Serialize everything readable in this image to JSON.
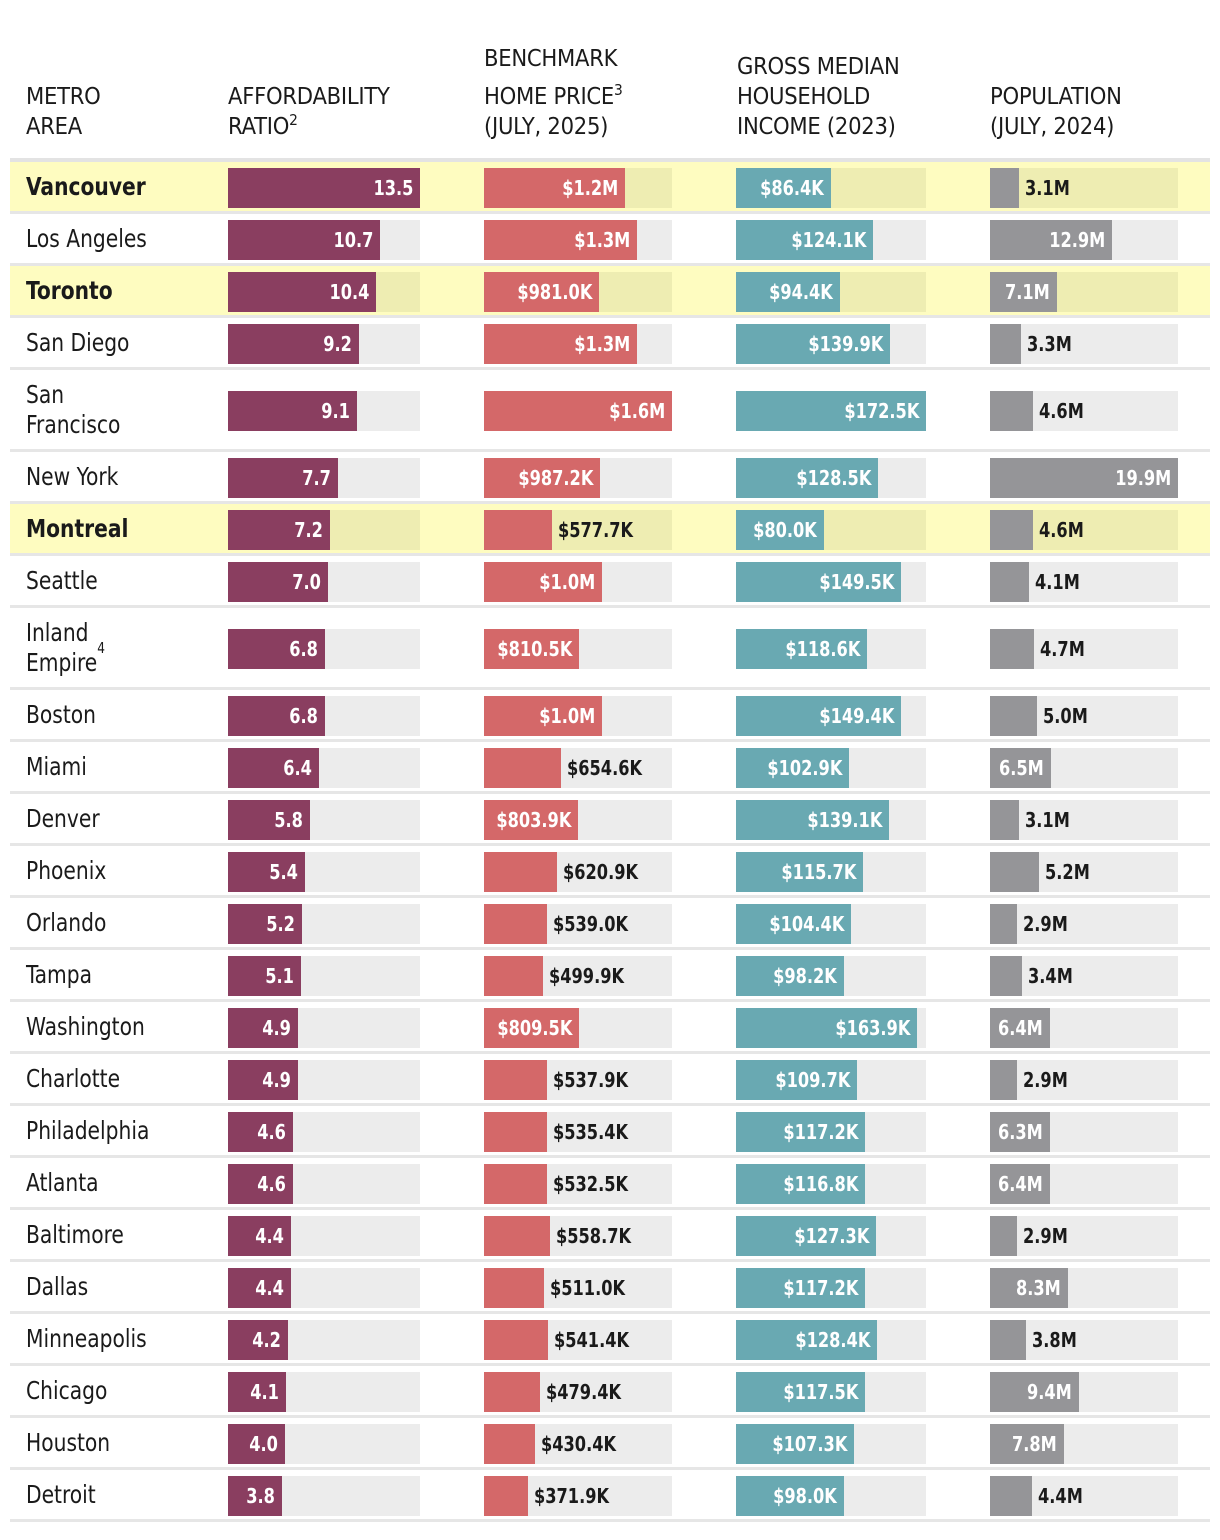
{
  "colors": {
    "affordability": "#8a3e60",
    "price": "#d46869",
    "income": "#69a9b2",
    "population": "#959598",
    "highlight_row": "#fefcc0",
    "highlight_track": "#eeedb2",
    "track": "#ececec"
  },
  "header": {
    "metro": "METRO\nAREA",
    "affordability": "AFFORDABILITY\nRATIO",
    "affordability_sup": "2",
    "price_line1": "BENCHMARK",
    "price_line2": "HOME PRICE",
    "price_sup": "3",
    "price_line3": "(JULY, 2025)",
    "income": "GROSS MEDIAN\nHOUSEHOLD\nINCOME (2023)",
    "population": "POPULATION\n(JULY, 2024)"
  },
  "chart_data": {
    "type": "table",
    "title": "",
    "columns": [
      "Metro area",
      "Affordability ratio",
      "Benchmark home price (July, 2025)",
      "Gross median household income (2023)",
      "Population (July, 2024)"
    ],
    "highlighted": [
      "Vancouver",
      "Toronto",
      "Montreal"
    ],
    "rows": [
      {
        "metro": "Vancouver",
        "sup": "",
        "highlight": true,
        "ratio": 13.5,
        "ratio_label": "13.5",
        "price": 1200000,
        "price_label": "$1.2M",
        "income": 86400,
        "income_label": "$86.4K",
        "pop": 3.1,
        "pop_label": "3.1M"
      },
      {
        "metro": "Los Angeles",
        "sup": "",
        "highlight": false,
        "ratio": 10.7,
        "ratio_label": "10.7",
        "price": 1300000,
        "price_label": "$1.3M",
        "income": 124100,
        "income_label": "$124.1K",
        "pop": 12.9,
        "pop_label": "12.9M"
      },
      {
        "metro": "Toronto",
        "sup": "",
        "highlight": true,
        "ratio": 10.4,
        "ratio_label": "10.4",
        "price": 981000,
        "price_label": "$981.0K",
        "income": 94400,
        "income_label": "$94.4K",
        "pop": 7.1,
        "pop_label": "7.1M"
      },
      {
        "metro": "San Diego",
        "sup": "",
        "highlight": false,
        "ratio": 9.2,
        "ratio_label": "9.2",
        "price": 1300000,
        "price_label": "$1.3M",
        "income": 139900,
        "income_label": "$139.9K",
        "pop": 3.3,
        "pop_label": "3.3M"
      },
      {
        "metro": "San\nFrancisco",
        "sup": "",
        "highlight": false,
        "tall": true,
        "ratio": 9.1,
        "ratio_label": "9.1",
        "price": 1600000,
        "price_label": "$1.6M",
        "income": 172500,
        "income_label": "$172.5K",
        "pop": 4.6,
        "pop_label": "4.6M"
      },
      {
        "metro": "New York",
        "sup": "",
        "highlight": false,
        "ratio": 7.7,
        "ratio_label": "7.7",
        "price": 987200,
        "price_label": "$987.2K",
        "income": 128500,
        "income_label": "$128.5K",
        "pop": 19.9,
        "pop_label": "19.9M"
      },
      {
        "metro": "Montreal",
        "sup": "",
        "highlight": true,
        "ratio": 7.2,
        "ratio_label": "7.2",
        "price": 577700,
        "price_label": "$577.7K",
        "income": 80000,
        "income_label": "$80.0K",
        "pop": 4.6,
        "pop_label": "4.6M"
      },
      {
        "metro": "Seattle",
        "sup": "",
        "highlight": false,
        "ratio": 7.0,
        "ratio_label": "7.0",
        "price": 1000000,
        "price_label": "$1.0M",
        "income": 149500,
        "income_label": "$149.5K",
        "pop": 4.1,
        "pop_label": "4.1M"
      },
      {
        "metro": "Inland\nEmpire",
        "sup": "4",
        "highlight": false,
        "tall": true,
        "ratio": 6.8,
        "ratio_label": "6.8",
        "price": 810500,
        "price_label": "$810.5K",
        "income": 118600,
        "income_label": "$118.6K",
        "pop": 4.7,
        "pop_label": "4.7M"
      },
      {
        "metro": "Boston",
        "sup": "",
        "highlight": false,
        "ratio": 6.8,
        "ratio_label": "6.8",
        "price": 1000000,
        "price_label": "$1.0M",
        "income": 149400,
        "income_label": "$149.4K",
        "pop": 5.0,
        "pop_label": "5.0M"
      },
      {
        "metro": "Miami",
        "sup": "",
        "highlight": false,
        "ratio": 6.4,
        "ratio_label": "6.4",
        "price": 654600,
        "price_label": "$654.6K",
        "income": 102900,
        "income_label": "$102.9K",
        "pop": 6.5,
        "pop_label": "6.5M"
      },
      {
        "metro": "Denver",
        "sup": "",
        "highlight": false,
        "ratio": 5.8,
        "ratio_label": "5.8",
        "price": 803900,
        "price_label": "$803.9K",
        "income": 139100,
        "income_label": "$139.1K",
        "pop": 3.1,
        "pop_label": "3.1M"
      },
      {
        "metro": "Phoenix",
        "sup": "",
        "highlight": false,
        "ratio": 5.4,
        "ratio_label": "5.4",
        "price": 620900,
        "price_label": "$620.9K",
        "income": 115700,
        "income_label": "$115.7K",
        "pop": 5.2,
        "pop_label": "5.2M"
      },
      {
        "metro": "Orlando",
        "sup": "",
        "highlight": false,
        "ratio": 5.2,
        "ratio_label": "5.2",
        "price": 539000,
        "price_label": "$539.0K",
        "income": 104400,
        "income_label": "$104.4K",
        "pop": 2.9,
        "pop_label": "2.9M"
      },
      {
        "metro": "Tampa",
        "sup": "",
        "highlight": false,
        "ratio": 5.1,
        "ratio_label": "5.1",
        "price": 499900,
        "price_label": "$499.9K",
        "income": 98200,
        "income_label": "$98.2K",
        "pop": 3.4,
        "pop_label": "3.4M"
      },
      {
        "metro": "Washington",
        "sup": "",
        "highlight": false,
        "ratio": 4.9,
        "ratio_label": "4.9",
        "price": 809500,
        "price_label": "$809.5K",
        "income": 163900,
        "income_label": "$163.9K",
        "pop": 6.4,
        "pop_label": "6.4M"
      },
      {
        "metro": "Charlotte",
        "sup": "",
        "highlight": false,
        "ratio": 4.9,
        "ratio_label": "4.9",
        "price": 537900,
        "price_label": "$537.9K",
        "income": 109700,
        "income_label": "$109.7K",
        "pop": 2.9,
        "pop_label": "2.9M"
      },
      {
        "metro": "Philadelphia",
        "sup": "",
        "highlight": false,
        "ratio": 4.6,
        "ratio_label": "4.6",
        "price": 535400,
        "price_label": "$535.4K",
        "income": 117200,
        "income_label": "$117.2K",
        "pop": 6.3,
        "pop_label": "6.3M"
      },
      {
        "metro": "Atlanta",
        "sup": "",
        "highlight": false,
        "ratio": 4.6,
        "ratio_label": "4.6",
        "price": 532500,
        "price_label": "$532.5K",
        "income": 116800,
        "income_label": "$116.8K",
        "pop": 6.4,
        "pop_label": "6.4M"
      },
      {
        "metro": "Baltimore",
        "sup": "",
        "highlight": false,
        "ratio": 4.4,
        "ratio_label": "4.4",
        "price": 558700,
        "price_label": "$558.7K",
        "income": 127300,
        "income_label": "$127.3K",
        "pop": 2.9,
        "pop_label": "2.9M"
      },
      {
        "metro": "Dallas",
        "sup": "",
        "highlight": false,
        "ratio": 4.4,
        "ratio_label": "4.4",
        "price": 511000,
        "price_label": "$511.0K",
        "income": 117200,
        "income_label": "$117.2K",
        "pop": 8.3,
        "pop_label": "8.3M"
      },
      {
        "metro": "Minneapolis",
        "sup": "",
        "highlight": false,
        "ratio": 4.2,
        "ratio_label": "4.2",
        "price": 541400,
        "price_label": "$541.4K",
        "income": 128400,
        "income_label": "$128.4K",
        "pop": 3.8,
        "pop_label": "3.8M"
      },
      {
        "metro": "Chicago",
        "sup": "",
        "highlight": false,
        "ratio": 4.1,
        "ratio_label": "4.1",
        "price": 479400,
        "price_label": "$479.4K",
        "income": 117500,
        "income_label": "$117.5K",
        "pop": 9.4,
        "pop_label": "9.4M"
      },
      {
        "metro": "Houston",
        "sup": "",
        "highlight": false,
        "ratio": 4.0,
        "ratio_label": "4.0",
        "price": 430400,
        "price_label": "$430.4K",
        "income": 107300,
        "income_label": "$107.3K",
        "pop": 7.8,
        "pop_label": "7.8M"
      },
      {
        "metro": "Detroit",
        "sup": "",
        "highlight": false,
        "ratio": 3.8,
        "ratio_label": "3.8",
        "price": 371900,
        "price_label": "$371.9K",
        "income": 98000,
        "income_label": "$98.0K",
        "pop": 4.4,
        "pop_label": "4.4M"
      }
    ],
    "scale_max": {
      "ratio": 13.5,
      "price": 1600000,
      "income": 172500,
      "pop": 19.9
    }
  }
}
